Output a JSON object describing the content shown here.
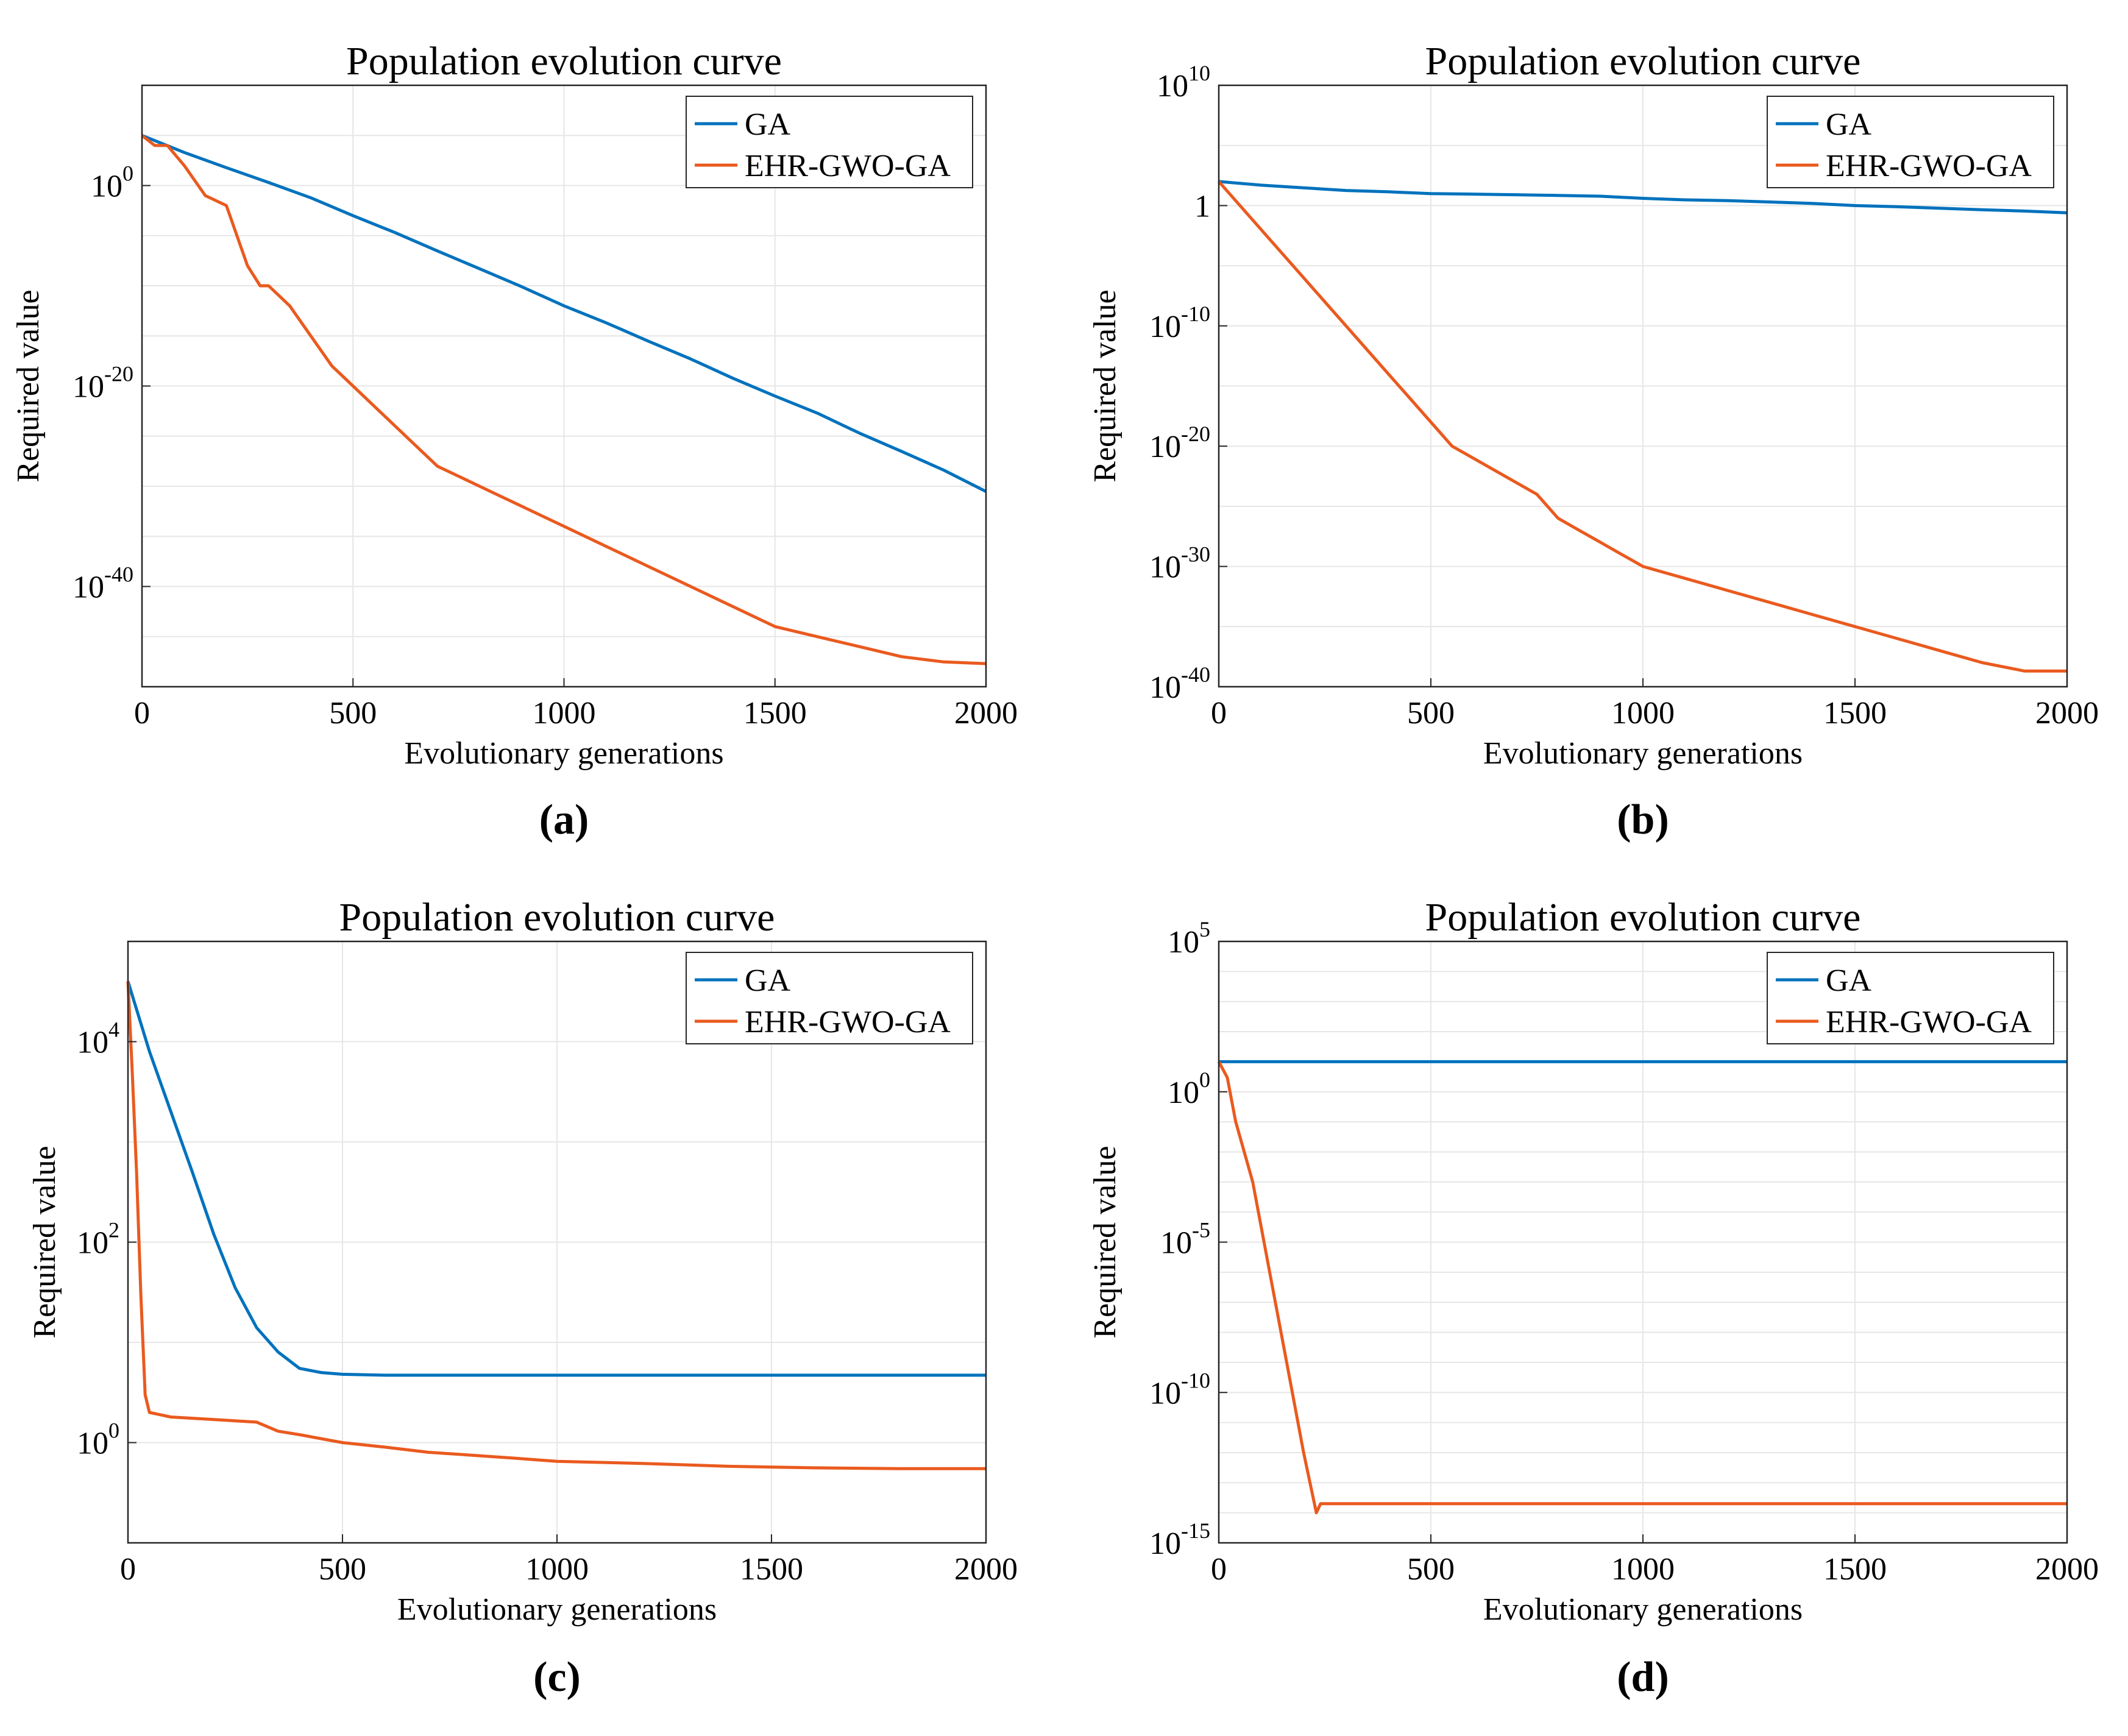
{
  "figure": {
    "panels": [
      {
        "caption": "(a)"
      },
      {
        "caption": "(b)"
      },
      {
        "caption": "(c)"
      },
      {
        "caption": "(d)"
      }
    ]
  },
  "colors": {
    "ga": "#0072BD",
    "ehr": "#EA5A1F",
    "grid": "#E6E6E6",
    "axis": "#262626"
  },
  "chart_data": [
    {
      "type": "line",
      "title": "Population evolution curve",
      "xlabel": "Evolutionary generations",
      "ylabel": "Required value",
      "xlim": [
        0,
        2000
      ],
      "ylim": [
        1e-50,
        10000000000.0
      ],
      "yscale": "log",
      "xticks": [
        "0",
        "500",
        "1000",
        "1500",
        "2000"
      ],
      "yticks": [
        {
          "base": "10",
          "exp": "0",
          "value": 1
        },
        {
          "base": "10",
          "exp": "-20",
          "value": 1e-20
        },
        {
          "base": "10",
          "exp": "-40",
          "value": 1e-40
        }
      ],
      "grid": true,
      "legend_position": "top-right",
      "series": [
        {
          "name": "GA",
          "x": [
            0,
            100,
            200,
            300,
            400,
            500,
            600,
            700,
            800,
            900,
            1000,
            1100,
            1200,
            1300,
            1400,
            1500,
            1600,
            1700,
            1800,
            1900,
            2000
          ],
          "y": [
            100000.0,
            2000.0,
            60.0,
            2,
            0.06,
            0.001,
            2e-05,
            3e-07,
            5e-09,
            8e-11,
            1e-12,
            2e-14,
            3e-16,
            5e-18,
            6e-20,
            1e-21,
            2e-23,
            2e-25,
            3e-27,
            4e-29,
            3e-31
          ]
        },
        {
          "name": "EHR-GWO-GA",
          "x": [
            0,
            30,
            60,
            100,
            150,
            200,
            250,
            280,
            300,
            350,
            400,
            450,
            500,
            550,
            600,
            650,
            700,
            750,
            800,
            850,
            900,
            950,
            1000,
            1100,
            1200,
            1300,
            1400,
            1500,
            1600,
            1700,
            1800,
            1900,
            2000
          ],
          "y": [
            100000.0,
            10000.0,
            10000.0,
            100.0,
            0.1,
            0.01,
            1e-08,
            1e-10,
            1e-10,
            1e-12,
            1e-15,
            1e-18,
            1e-20,
            1e-22,
            1e-24,
            1e-26,
            1e-28,
            1e-29,
            1e-30,
            1e-31,
            1e-32,
            1e-33,
            1e-34,
            1e-36,
            1e-38,
            1e-40,
            1e-42,
            1e-44,
            1e-45,
            1e-46,
            1e-47,
            3e-48,
            2e-48
          ]
        }
      ]
    },
    {
      "type": "line",
      "title": "Population evolution curve",
      "xlabel": "Evolutionary generations",
      "ylabel": "Required value",
      "xlim": [
        0,
        2000
      ],
      "ylim": [
        1e-40,
        10000000000.0
      ],
      "yscale": "log",
      "xticks": [
        "0",
        "500",
        "1000",
        "1500",
        "2000"
      ],
      "yticks": [
        {
          "base": "10",
          "exp": "10",
          "value": 10000000000.0
        },
        {
          "base": "1",
          "exp": "",
          "value": 1
        },
        {
          "base": "10",
          "exp": "-10",
          "value": 1e-10
        },
        {
          "base": "10",
          "exp": "-20",
          "value": 1e-20
        },
        {
          "base": "10",
          "exp": "-30",
          "value": 1e-30
        },
        {
          "base": "10",
          "exp": "-40",
          "value": 1e-40
        }
      ],
      "grid": true,
      "legend_position": "top-right",
      "series": [
        {
          "name": "GA",
          "x": [
            0,
            100,
            200,
            300,
            400,
            500,
            600,
            700,
            800,
            900,
            1000,
            1100,
            1200,
            1300,
            1400,
            1500,
            1600,
            1700,
            1800,
            1900,
            2000
          ],
          "y": [
            100,
            50,
            30,
            18,
            14,
            10,
            9,
            8,
            7,
            6,
            4,
            3,
            2.6,
            2,
            1.5,
            1,
            0.8,
            0.6,
            0.45,
            0.35,
            0.25
          ]
        },
        {
          "name": "EHR-GWO-GA",
          "x": [
            0,
            50,
            100,
            150,
            200,
            250,
            300,
            350,
            400,
            450,
            500,
            550,
            600,
            650,
            700,
            750,
            800,
            850,
            900,
            950,
            1000,
            1100,
            1200,
            1300,
            1400,
            1500,
            1600,
            1700,
            1800,
            1900,
            2000
          ],
          "y": [
            100,
            1,
            0.01,
            0.0001,
            1e-06,
            1e-08,
            1e-10,
            1e-12,
            1e-14,
            1e-16,
            1e-18,
            1e-20,
            1e-21,
            1e-22,
            1e-23,
            1e-24,
            1e-26,
            1e-27,
            1e-28,
            1e-29,
            1e-30,
            1e-31,
            1e-32,
            1e-33,
            1e-34,
            1e-35,
            1e-36,
            1e-37,
            1e-38,
            2e-39,
            2e-39
          ]
        }
      ]
    },
    {
      "type": "line",
      "title": "Population evolution curve",
      "xlabel": "Evolutionary generations",
      "ylabel": "Required value",
      "xlim": [
        0,
        2000
      ],
      "ylim": [
        0.1,
        100000
      ],
      "yscale": "log",
      "xticks": [
        "0",
        "500",
        "1000",
        "1500",
        "2000"
      ],
      "yticks": [
        {
          "base": "10",
          "exp": "4",
          "value": 10000
        },
        {
          "base": "10",
          "exp": "2",
          "value": 100
        },
        {
          "base": "10",
          "exp": "0",
          "value": 1
        }
      ],
      "grid": true,
      "legend_position": "top-right",
      "series": [
        {
          "name": "GA",
          "x": [
            0,
            50,
            100,
            150,
            200,
            250,
            300,
            350,
            400,
            450,
            500,
            600,
            800,
            1000,
            1200,
            1400,
            1600,
            1800,
            2000
          ],
          "y": [
            40000,
            8000,
            2000,
            500,
            120,
            35,
            14,
            8,
            5.5,
            5,
            4.8,
            4.7,
            4.7,
            4.7,
            4.7,
            4.7,
            4.7,
            4.7,
            4.7
          ]
        },
        {
          "name": "EHR-GWO-GA",
          "x": [
            0,
            10,
            20,
            30,
            40,
            50,
            100,
            200,
            300,
            350,
            400,
            500,
            600,
            700,
            800,
            900,
            1000,
            1200,
            1400,
            1600,
            1800,
            2000
          ],
          "y": [
            40000,
            5000,
            500,
            30,
            3,
            2,
            1.8,
            1.7,
            1.6,
            1.3,
            1.2,
            1.0,
            0.9,
            0.8,
            0.75,
            0.7,
            0.65,
            0.62,
            0.58,
            0.56,
            0.55,
            0.55
          ]
        }
      ]
    },
    {
      "type": "line",
      "title": "Population evolution curve",
      "xlabel": "Evolutionary generations",
      "ylabel": "Required value",
      "xlim": [
        0,
        2000
      ],
      "ylim": [
        1e-15,
        100000.0
      ],
      "yscale": "log",
      "xticks": [
        "0",
        "500",
        "1000",
        "1500",
        "2000"
      ],
      "yticks": [
        {
          "base": "10",
          "exp": "5",
          "value": 100000.0
        },
        {
          "base": "10",
          "exp": "0",
          "value": 1
        },
        {
          "base": "10",
          "exp": "-5",
          "value": 1e-05
        },
        {
          "base": "10",
          "exp": "-10",
          "value": 1e-10
        },
        {
          "base": "10",
          "exp": "-15",
          "value": 1e-15
        }
      ],
      "grid": true,
      "legend_position": "top-right",
      "series": [
        {
          "name": "GA",
          "x": [
            0,
            2000
          ],
          "y": [
            10,
            10
          ]
        },
        {
          "name": "EHR-GWO-GA",
          "x": [
            0,
            20,
            40,
            80,
            120,
            160,
            200,
            230,
            240,
            2000
          ],
          "y": [
            10,
            3,
            0.1,
            0.001,
            1e-06,
            1e-09,
            1e-12,
            1e-14,
            2e-14,
            2e-14
          ]
        }
      ]
    }
  ]
}
